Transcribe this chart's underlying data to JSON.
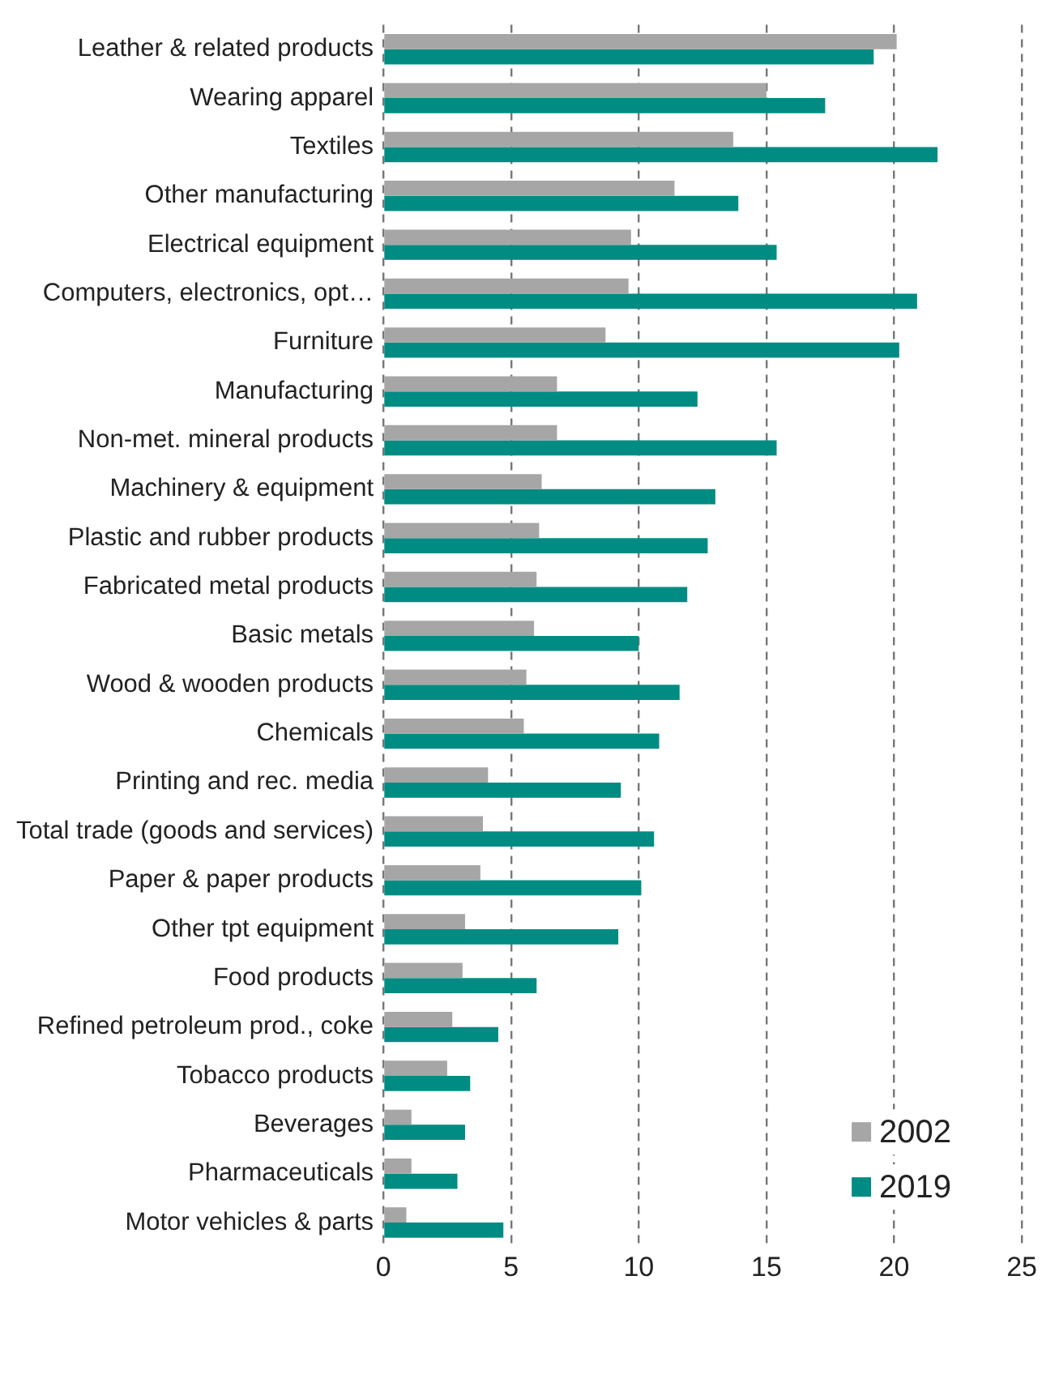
{
  "chart_data": {
    "type": "bar",
    "orientation": "horizontal",
    "categories": [
      "Leather & related products",
      "Wearing apparel",
      "Textiles",
      "Other manufacturing",
      "Electrical equipment",
      "Computers, electronics, opt…",
      "Furniture",
      "Manufacturing",
      "Non-met. mineral products",
      "Machinery & equipment",
      "Plastic and rubber products",
      "Fabricated metal products",
      "Basic metals",
      "Wood & wooden products",
      "Chemicals",
      "Printing and rec. media",
      "Total trade (goods and services)",
      "Paper & paper products",
      "Other tpt equipment",
      "Food products",
      "Refined petroleum prod., coke",
      "Tobacco products",
      "Beverages",
      "Pharmaceuticals",
      "Motor vehicles & parts"
    ],
    "series": [
      {
        "name": "2002",
        "color": "#a6a6a6",
        "values": [
          20.1,
          15.0,
          13.7,
          11.4,
          9.7,
          9.6,
          8.7,
          6.8,
          6.8,
          6.2,
          6.1,
          6.0,
          5.9,
          5.6,
          5.5,
          4.1,
          3.9,
          3.8,
          3.2,
          3.1,
          2.7,
          2.5,
          1.1,
          1.1,
          0.9
        ]
      },
      {
        "name": "2019",
        "color": "#008c83",
        "values": [
          19.2,
          17.3,
          21.7,
          13.9,
          15.4,
          20.9,
          20.2,
          12.3,
          15.4,
          13.0,
          12.7,
          11.9,
          10.0,
          11.6,
          10.8,
          9.3,
          10.6,
          10.1,
          9.2,
          6.0,
          4.5,
          3.4,
          3.2,
          2.9,
          4.7
        ]
      }
    ],
    "xlim": [
      0,
      25
    ],
    "xticks": [
      0,
      5,
      10,
      15,
      20,
      25
    ],
    "grid": "x",
    "legend": "bottom right"
  }
}
